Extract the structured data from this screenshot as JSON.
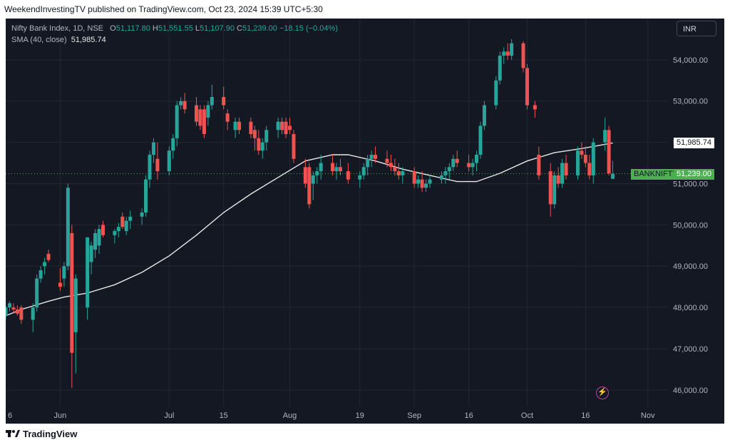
{
  "header": {
    "published_line": "WeekendInvestingTV published on TradingView.com, Oct 23, 2024 15:39 UTC+5:30"
  },
  "legend": {
    "instrument": "Nifty Bank Index, 1D, NSE",
    "o_label": "O",
    "o_value": "51,117.80",
    "h_label": "H",
    "h_value": "51,551.55",
    "l_label": "L",
    "l_value": "51,107.90",
    "c_label": "C",
    "c_value": "51,239.00",
    "change": "−18.15 (−0.04%)",
    "sma_label": "SMA (40, close)",
    "sma_value": "51,985.74"
  },
  "toolbar": {
    "currency": "INR"
  },
  "price_labels": {
    "sma": "51,985.74",
    "symbol": "BANKNIFTY",
    "last": "51,239.00"
  },
  "footer": {
    "brand": "TradingView"
  },
  "icons": {
    "tv_logo": "tradingview-logo-icon",
    "bolt": "lightning-bolt-icon"
  },
  "colors": {
    "background": "#141823",
    "grid": "#232632",
    "up": "#26a69a",
    "up_bright": "#4caf50",
    "down": "#ef5350",
    "sma": "#e8e8e8",
    "axis_text": "#b2b5be",
    "last_price_line": "#4caf50"
  },
  "chart_data": {
    "type": "candlestick",
    "title": "Nifty Bank Index, 1D, NSE",
    "ylim": [
      45600,
      55000
    ],
    "y_ticks": [
      46000,
      47000,
      48000,
      49000,
      50000,
      51000,
      52000,
      53000,
      54000
    ],
    "y_tick_labels": [
      "46,000.00",
      "47,000.00",
      "48,000.00",
      "49,000.00",
      "50,000.00",
      "51,000.00",
      "52,000.00",
      "53,000.00",
      "54,000.00"
    ],
    "x_start": "2024-05-20",
    "x_end": "2024-11-06",
    "x_ticks": [
      {
        "date": "2024-05-20",
        "label": "6"
      },
      {
        "date": "2024-06-03",
        "label": "Jun"
      },
      {
        "date": "2024-07-01",
        "label": "Jul"
      },
      {
        "date": "2024-07-15",
        "label": "15"
      },
      {
        "date": "2024-08-01",
        "label": "Aug"
      },
      {
        "date": "2024-08-19",
        "label": "19"
      },
      {
        "date": "2024-09-02",
        "label": "Sep"
      },
      {
        "date": "2024-09-16",
        "label": "16"
      },
      {
        "date": "2024-10-01",
        "label": "Oct"
      },
      {
        "date": "2024-10-16",
        "label": "16"
      },
      {
        "date": "2024-11-01",
        "label": "Nov"
      }
    ],
    "last_price": 51239,
    "sma_last": 51985.74,
    "candles": [
      {
        "date": "2024-05-20",
        "o": 47800,
        "h": 48050,
        "l": 47700,
        "c": 48000
      },
      {
        "date": "2024-05-21",
        "o": 48000,
        "h": 48150,
        "l": 47900,
        "c": 48100
      },
      {
        "date": "2024-05-22",
        "o": 48000,
        "h": 48100,
        "l": 47850,
        "c": 47950
      },
      {
        "date": "2024-05-23",
        "o": 47950,
        "h": 48050,
        "l": 47800,
        "c": 47850
      },
      {
        "date": "2024-05-24",
        "o": 48000,
        "h": 48050,
        "l": 47600,
        "c": 47700
      },
      {
        "date": "2024-05-27",
        "o": 47700,
        "h": 48100,
        "l": 47400,
        "c": 48000
      },
      {
        "date": "2024-05-28",
        "o": 48000,
        "h": 48800,
        "l": 47900,
        "c": 48700
      },
      {
        "date": "2024-05-29",
        "o": 48700,
        "h": 49000,
        "l": 48600,
        "c": 48900
      },
      {
        "date": "2024-05-30",
        "o": 49000,
        "h": 49200,
        "l": 48800,
        "c": 49100
      },
      {
        "date": "2024-05-31",
        "o": 49300,
        "h": 49400,
        "l": 49100,
        "c": 49150
      },
      {
        "date": "2024-06-03",
        "o": 48600,
        "h": 48950,
        "l": 48400,
        "c": 48500
      },
      {
        "date": "2024-06-04",
        "o": 48700,
        "h": 49100,
        "l": 48500,
        "c": 49000
      },
      {
        "date": "2024-06-05",
        "o": 49000,
        "h": 51000,
        "l": 48900,
        "c": 50900
      },
      {
        "date": "2024-06-06",
        "o": 49800,
        "h": 50000,
        "l": 46050,
        "c": 46900
      },
      {
        "date": "2024-06-07",
        "o": 47400,
        "h": 48800,
        "l": 46400,
        "c": 48700
      },
      {
        "date": "2024-06-10",
        "o": 48000,
        "h": 49700,
        "l": 47700,
        "c": 49700
      },
      {
        "date": "2024-06-11",
        "o": 49100,
        "h": 49600,
        "l": 48800,
        "c": 49500
      },
      {
        "date": "2024-06-12",
        "o": 49400,
        "h": 49900,
        "l": 49200,
        "c": 49800
      },
      {
        "date": "2024-06-13",
        "o": 49500,
        "h": 50000,
        "l": 49300,
        "c": 49900
      },
      {
        "date": "2024-06-14",
        "o": 50000,
        "h": 50100,
        "l": 49700,
        "c": 49750
      },
      {
        "date": "2024-06-17",
        "o": 49750,
        "h": 49900,
        "l": 49550,
        "c": 49850
      },
      {
        "date": "2024-06-18",
        "o": 49850,
        "h": 50050,
        "l": 49700,
        "c": 49950
      },
      {
        "date": "2024-06-19",
        "o": 50200,
        "h": 50300,
        "l": 49900,
        "c": 49950
      },
      {
        "date": "2024-06-20",
        "o": 49850,
        "h": 50200,
        "l": 49750,
        "c": 50100
      },
      {
        "date": "2024-06-21",
        "o": 50100,
        "h": 50350,
        "l": 49900,
        "c": 50200
      },
      {
        "date": "2024-06-24",
        "o": 50200,
        "h": 50400,
        "l": 50000,
        "c": 50300
      },
      {
        "date": "2024-06-25",
        "o": 50300,
        "h": 51200,
        "l": 50200,
        "c": 51100
      },
      {
        "date": "2024-06-26",
        "o": 51100,
        "h": 51800,
        "l": 50900,
        "c": 51700
      },
      {
        "date": "2024-06-27",
        "o": 51700,
        "h": 52100,
        "l": 51500,
        "c": 52000
      },
      {
        "date": "2024-06-28",
        "o": 51600,
        "h": 52000,
        "l": 51100,
        "c": 51300
      },
      {
        "date": "2024-07-01",
        "o": 51300,
        "h": 51900,
        "l": 51200,
        "c": 51800
      },
      {
        "date": "2024-07-02",
        "o": 51800,
        "h": 52200,
        "l": 51600,
        "c": 52100
      },
      {
        "date": "2024-07-03",
        "o": 52100,
        "h": 53000,
        "l": 51900,
        "c": 52900
      },
      {
        "date": "2024-07-04",
        "o": 52900,
        "h": 53100,
        "l": 52800,
        "c": 53000
      },
      {
        "date": "2024-07-05",
        "o": 53000,
        "h": 53200,
        "l": 52700,
        "c": 52800
      },
      {
        "date": "2024-07-08",
        "o": 52900,
        "h": 53100,
        "l": 52400,
        "c": 52500
      },
      {
        "date": "2024-07-09",
        "o": 52800,
        "h": 52900,
        "l": 52300,
        "c": 52400
      },
      {
        "date": "2024-07-10",
        "o": 52800,
        "h": 52900,
        "l": 52100,
        "c": 52200
      },
      {
        "date": "2024-07-11",
        "o": 52600,
        "h": 53000,
        "l": 52400,
        "c": 52900
      },
      {
        "date": "2024-07-12",
        "o": 52900,
        "h": 53400,
        "l": 52800,
        "c": 53100
      },
      {
        "date": "2024-07-15",
        "o": 53100,
        "h": 53350,
        "l": 52800,
        "c": 52900
      },
      {
        "date": "2024-07-16",
        "o": 52700,
        "h": 52800,
        "l": 52300,
        "c": 52500
      },
      {
        "date": "2024-07-18",
        "o": 52300,
        "h": 52600,
        "l": 52100,
        "c": 52500
      },
      {
        "date": "2024-07-19",
        "o": 52500,
        "h": 52600,
        "l": 52200,
        "c": 52300
      },
      {
        "date": "2024-07-22",
        "o": 52500,
        "h": 52600,
        "l": 52100,
        "c": 52200
      },
      {
        "date": "2024-07-23",
        "o": 52300,
        "h": 52400,
        "l": 51800,
        "c": 52100
      },
      {
        "date": "2024-07-24",
        "o": 52100,
        "h": 52300,
        "l": 51700,
        "c": 51800
      },
      {
        "date": "2024-07-25",
        "o": 51800,
        "h": 52100,
        "l": 51600,
        "c": 52000
      },
      {
        "date": "2024-07-26",
        "o": 52000,
        "h": 52400,
        "l": 51800,
        "c": 52300
      },
      {
        "date": "2024-07-29",
        "o": 52300,
        "h": 52600,
        "l": 52100,
        "c": 52500
      },
      {
        "date": "2024-07-30",
        "o": 52500,
        "h": 52600,
        "l": 52200,
        "c": 52300
      },
      {
        "date": "2024-07-31",
        "o": 52500,
        "h": 52600,
        "l": 52100,
        "c": 52200
      },
      {
        "date": "2024-08-01",
        "o": 52400,
        "h": 52600,
        "l": 52200,
        "c": 52300
      },
      {
        "date": "2024-08-02",
        "o": 52200,
        "h": 52300,
        "l": 51500,
        "c": 51600
      },
      {
        "date": "2024-08-05",
        "o": 51400,
        "h": 51600,
        "l": 50900,
        "c": 51000
      },
      {
        "date": "2024-08-06",
        "o": 51400,
        "h": 51500,
        "l": 50400,
        "c": 50500
      },
      {
        "date": "2024-08-07",
        "o": 51000,
        "h": 51300,
        "l": 50600,
        "c": 51200
      },
      {
        "date": "2024-08-08",
        "o": 51200,
        "h": 51400,
        "l": 51000,
        "c": 51300
      },
      {
        "date": "2024-08-09",
        "o": 51300,
        "h": 51700,
        "l": 51100,
        "c": 51500
      },
      {
        "date": "2024-08-12",
        "o": 51500,
        "h": 51700,
        "l": 51200,
        "c": 51300
      },
      {
        "date": "2024-08-13",
        "o": 51300,
        "h": 51500,
        "l": 51100,
        "c": 51400
      },
      {
        "date": "2024-08-14",
        "o": 51400,
        "h": 51600,
        "l": 51200,
        "c": 51300
      },
      {
        "date": "2024-08-16",
        "o": 51300,
        "h": 51500,
        "l": 51000,
        "c": 51100
      },
      {
        "date": "2024-08-19",
        "o": 51100,
        "h": 51300,
        "l": 50900,
        "c": 51200
      },
      {
        "date": "2024-08-20",
        "o": 51200,
        "h": 51500,
        "l": 51100,
        "c": 51400
      },
      {
        "date": "2024-08-21",
        "o": 51400,
        "h": 51700,
        "l": 51200,
        "c": 51600
      },
      {
        "date": "2024-08-22",
        "o": 51600,
        "h": 51800,
        "l": 51400,
        "c": 51700
      },
      {
        "date": "2024-08-23",
        "o": 51700,
        "h": 51900,
        "l": 51500,
        "c": 51600
      },
      {
        "date": "2024-08-26",
        "o": 51600,
        "h": 51800,
        "l": 51400,
        "c": 51500
      },
      {
        "date": "2024-08-27",
        "o": 51500,
        "h": 51700,
        "l": 51300,
        "c": 51400
      },
      {
        "date": "2024-08-28",
        "o": 51400,
        "h": 51600,
        "l": 51200,
        "c": 51300
      },
      {
        "date": "2024-08-29",
        "o": 51300,
        "h": 51500,
        "l": 51100,
        "c": 51200
      },
      {
        "date": "2024-08-30",
        "o": 51200,
        "h": 51400,
        "l": 51000,
        "c": 51300
      },
      {
        "date": "2024-09-02",
        "o": 51300,
        "h": 51400,
        "l": 50900,
        "c": 51000
      },
      {
        "date": "2024-09-03",
        "o": 51000,
        "h": 51200,
        "l": 50900,
        "c": 51100
      },
      {
        "date": "2024-09-04",
        "o": 51100,
        "h": 51300,
        "l": 50800,
        "c": 50900
      },
      {
        "date": "2024-09-05",
        "o": 50900,
        "h": 51100,
        "l": 50800,
        "c": 51000
      },
      {
        "date": "2024-09-06",
        "o": 51000,
        "h": 51200,
        "l": 50900,
        "c": 51100
      },
      {
        "date": "2024-09-09",
        "o": 51100,
        "h": 51300,
        "l": 51000,
        "c": 51200
      },
      {
        "date": "2024-09-10",
        "o": 51200,
        "h": 51400,
        "l": 51000,
        "c": 51300
      },
      {
        "date": "2024-09-11",
        "o": 51300,
        "h": 51500,
        "l": 51100,
        "c": 51400
      },
      {
        "date": "2024-09-12",
        "o": 51400,
        "h": 51700,
        "l": 51300,
        "c": 51600
      },
      {
        "date": "2024-09-13",
        "o": 51600,
        "h": 51800,
        "l": 51400,
        "c": 51500
      },
      {
        "date": "2024-09-16",
        "o": 51500,
        "h": 51700,
        "l": 51300,
        "c": 51400
      },
      {
        "date": "2024-09-17",
        "o": 51400,
        "h": 51600,
        "l": 51200,
        "c": 51500
      },
      {
        "date": "2024-09-18",
        "o": 51500,
        "h": 51800,
        "l": 51300,
        "c": 51700
      },
      {
        "date": "2024-09-19",
        "o": 51700,
        "h": 52500,
        "l": 51600,
        "c": 52400
      },
      {
        "date": "2024-09-20",
        "o": 52400,
        "h": 53000,
        "l": 52300,
        "c": 52900
      },
      {
        "date": "2024-09-23",
        "o": 52900,
        "h": 53600,
        "l": 52800,
        "c": 53500
      },
      {
        "date": "2024-09-24",
        "o": 53500,
        "h": 54200,
        "l": 53400,
        "c": 54100
      },
      {
        "date": "2024-09-25",
        "o": 54100,
        "h": 54300,
        "l": 53900,
        "c": 54200
      },
      {
        "date": "2024-09-26",
        "o": 54200,
        "h": 54400,
        "l": 54000,
        "c": 54100
      },
      {
        "date": "2024-09-27",
        "o": 54100,
        "h": 54500,
        "l": 54000,
        "c": 54400
      },
      {
        "date": "2024-09-30",
        "o": 54400,
        "h": 54450,
        "l": 53700,
        "c": 53800
      },
      {
        "date": "2024-10-01",
        "o": 53800,
        "h": 53900,
        "l": 52800,
        "c": 52900
      },
      {
        "date": "2024-10-03",
        "o": 52900,
        "h": 53000,
        "l": 52600,
        "c": 52800
      },
      {
        "date": "2024-10-04",
        "o": 51700,
        "h": 51900,
        "l": 51100,
        "c": 51200
      },
      {
        "date": "2024-10-07",
        "o": 51300,
        "h": 51500,
        "l": 50200,
        "c": 50500
      },
      {
        "date": "2024-10-08",
        "o": 50500,
        "h": 51300,
        "l": 50400,
        "c": 51200
      },
      {
        "date": "2024-10-09",
        "o": 51200,
        "h": 51400,
        "l": 50900,
        "c": 51000
      },
      {
        "date": "2024-10-10",
        "o": 51000,
        "h": 51600,
        "l": 50900,
        "c": 51500
      },
      {
        "date": "2024-10-11",
        "o": 51500,
        "h": 51700,
        "l": 51100,
        "c": 51200
      },
      {
        "date": "2024-10-14",
        "o": 51200,
        "h": 51900,
        "l": 51100,
        "c": 51800
      },
      {
        "date": "2024-10-15",
        "o": 51800,
        "h": 52000,
        "l": 51600,
        "c": 51700
      },
      {
        "date": "2024-10-16",
        "o": 51700,
        "h": 51900,
        "l": 51400,
        "c": 51500
      },
      {
        "date": "2024-10-17",
        "o": 51500,
        "h": 51700,
        "l": 51100,
        "c": 51200
      },
      {
        "date": "2024-10-18",
        "o": 51200,
        "h": 52100,
        "l": 51000,
        "c": 52000
      },
      {
        "date": "2024-10-21",
        "o": 52000,
        "h": 52600,
        "l": 51800,
        "c": 52300
      },
      {
        "date": "2024-10-22",
        "o": 52300,
        "h": 52400,
        "l": 51200,
        "c": 51250
      },
      {
        "date": "2024-10-23",
        "o": 51117.8,
        "h": 51551.55,
        "l": 51107.9,
        "c": 51239
      }
    ],
    "sma_points": [
      {
        "date": "2024-05-20",
        "v": 47800
      },
      {
        "date": "2024-05-24",
        "v": 47950
      },
      {
        "date": "2024-05-31",
        "v": 48150
      },
      {
        "date": "2024-06-04",
        "v": 48250
      },
      {
        "date": "2024-06-10",
        "v": 48350
      },
      {
        "date": "2024-06-17",
        "v": 48550
      },
      {
        "date": "2024-06-24",
        "v": 48850
      },
      {
        "date": "2024-07-01",
        "v": 49250
      },
      {
        "date": "2024-07-08",
        "v": 49750
      },
      {
        "date": "2024-07-15",
        "v": 50300
      },
      {
        "date": "2024-07-22",
        "v": 50750
      },
      {
        "date": "2024-07-29",
        "v": 51150
      },
      {
        "date": "2024-08-05",
        "v": 51550
      },
      {
        "date": "2024-08-12",
        "v": 51700
      },
      {
        "date": "2024-08-16",
        "v": 51700
      },
      {
        "date": "2024-08-23",
        "v": 51550
      },
      {
        "date": "2024-08-30",
        "v": 51350
      },
      {
        "date": "2024-09-06",
        "v": 51200
      },
      {
        "date": "2024-09-13",
        "v": 51050
      },
      {
        "date": "2024-09-18",
        "v": 51050
      },
      {
        "date": "2024-09-24",
        "v": 51250
      },
      {
        "date": "2024-10-01",
        "v": 51550
      },
      {
        "date": "2024-10-08",
        "v": 51750
      },
      {
        "date": "2024-10-15",
        "v": 51850
      },
      {
        "date": "2024-10-23",
        "v": 51985.74
      }
    ]
  }
}
